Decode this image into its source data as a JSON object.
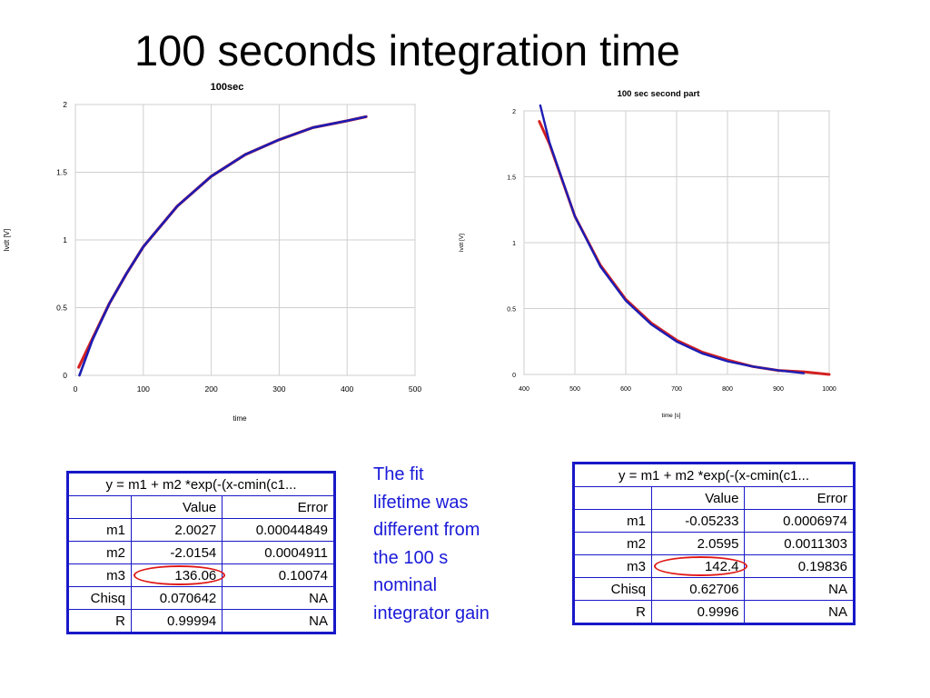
{
  "slide_title": "100 seconds integration time",
  "note_lines": [
    "The fit",
    "lifetime was",
    "different from",
    "the 100 s",
    "nominal",
    "integrator gain"
  ],
  "chart_data": [
    {
      "type": "line",
      "title": "100sec",
      "xlabel": "time",
      "ylabel": "lvdt [V]",
      "xlim": [
        0,
        500
      ],
      "ylim": [
        0,
        2
      ],
      "xticks": [
        "0",
        "100",
        "200",
        "300",
        "400",
        "500"
      ],
      "yticks": [
        "0",
        "0.5",
        "1",
        "1.5",
        "2"
      ],
      "grid": true,
      "series": [
        {
          "color": "#d42020",
          "x": [
            5,
            25,
            50,
            75,
            100,
            150,
            200,
            250,
            300,
            350,
            400,
            428
          ],
          "y": [
            0.06,
            0.27,
            0.53,
            0.75,
            0.95,
            1.25,
            1.47,
            1.63,
            1.74,
            1.83,
            1.88,
            1.91
          ]
        },
        {
          "color": "#1c1cb4",
          "x": [
            6,
            25,
            50,
            75,
            100,
            150,
            200,
            250,
            300,
            350,
            400,
            428
          ],
          "y": [
            0.0,
            0.26,
            0.53,
            0.75,
            0.95,
            1.25,
            1.47,
            1.63,
            1.74,
            1.83,
            1.88,
            1.91
          ]
        }
      ]
    },
    {
      "type": "line",
      "title": "100 sec second part",
      "xlabel": "time [s]",
      "ylabel": "lvdt [V]",
      "xlim": [
        400,
        1000
      ],
      "ylim": [
        0,
        2
      ],
      "xticks": [
        "400",
        "500",
        "600",
        "700",
        "800",
        "900",
        "1000"
      ],
      "yticks": [
        "0",
        "0.5",
        "1",
        "1.5",
        "2"
      ],
      "grid": true,
      "series": [
        {
          "color": "#d42020",
          "x": [
            430,
            450,
            500,
            550,
            600,
            650,
            700,
            750,
            800,
            850,
            900,
            950,
            1000
          ],
          "y": [
            1.92,
            1.75,
            1.2,
            0.83,
            0.57,
            0.39,
            0.26,
            0.17,
            0.11,
            0.06,
            0.03,
            0.02,
            0.0
          ]
        },
        {
          "color": "#1c1cb4",
          "x": [
            432,
            450,
            500,
            550,
            600,
            650,
            700,
            750,
            800,
            850,
            900,
            950
          ],
          "y": [
            2.05,
            1.76,
            1.2,
            0.82,
            0.56,
            0.38,
            0.25,
            0.16,
            0.1,
            0.06,
            0.03,
            0.01
          ]
        }
      ]
    }
  ],
  "table_left": {
    "title": "y = m1 + m2 *exp(-(x-cmin(c1...",
    "header": [
      "",
      "Value",
      "Error"
    ],
    "rows": [
      [
        "m1",
        "2.0027",
        "0.00044849"
      ],
      [
        "m2",
        "-2.0154",
        "0.0004911"
      ],
      [
        "m3",
        "136.06",
        "0.10074"
      ],
      [
        "Chisq",
        "0.070642",
        "NA"
      ],
      [
        "R",
        "0.99994",
        "NA"
      ]
    ]
  },
  "table_right": {
    "title": "y = m1 + m2 *exp(-(x-cmin(c1...",
    "header": [
      "",
      "Value",
      "Error"
    ],
    "rows": [
      [
        "m1",
        "-0.05233",
        "0.0006974"
      ],
      [
        "m2",
        "2.0595",
        "0.0011303"
      ],
      [
        "m3",
        "142.4",
        "0.19836"
      ],
      [
        "Chisq",
        "0.62706",
        "NA"
      ],
      [
        "R",
        "0.9996",
        "NA"
      ]
    ]
  }
}
